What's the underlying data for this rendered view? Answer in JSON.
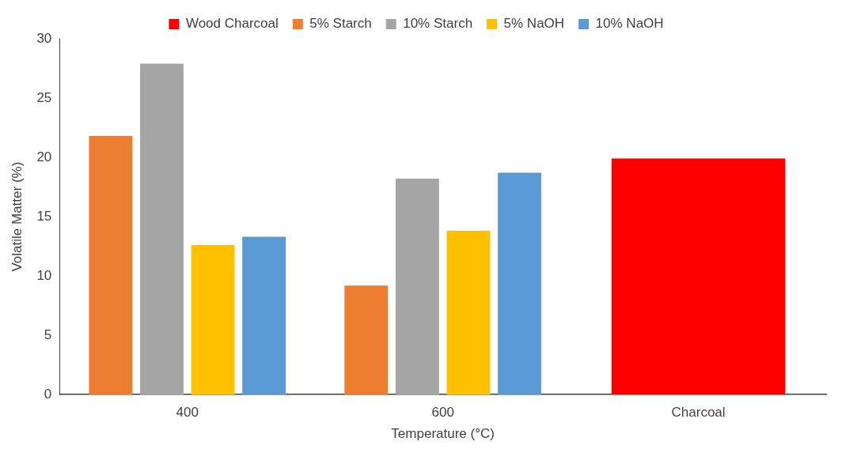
{
  "chart_data": {
    "type": "bar",
    "xlabel": "Temperature (°C)",
    "ylabel": "Volatile Matter (%)",
    "categories": [
      "400",
      "600",
      "Charcoal"
    ],
    "series": [
      {
        "name": "Wood Charcoal",
        "color": "#ff0000",
        "values": [
          null,
          null,
          19.9
        ]
      },
      {
        "name": "5% Starch",
        "color": "#ed7d31",
        "values": [
          21.8,
          9.2,
          null
        ]
      },
      {
        "name": "10% Starch",
        "color": "#a5a5a5",
        "values": [
          27.9,
          18.2,
          null
        ]
      },
      {
        "name": "5% NaOH",
        "color": "#ffc000",
        "values": [
          12.6,
          13.8,
          null
        ]
      },
      {
        "name": "10% NaOH",
        "color": "#5b9bd5",
        "values": [
          13.3,
          18.7,
          null
        ]
      }
    ],
    "ylim": [
      0,
      30
    ],
    "yticks": [
      0,
      5,
      10,
      15,
      20,
      25,
      30
    ],
    "grid": false,
    "legend": "top"
  }
}
